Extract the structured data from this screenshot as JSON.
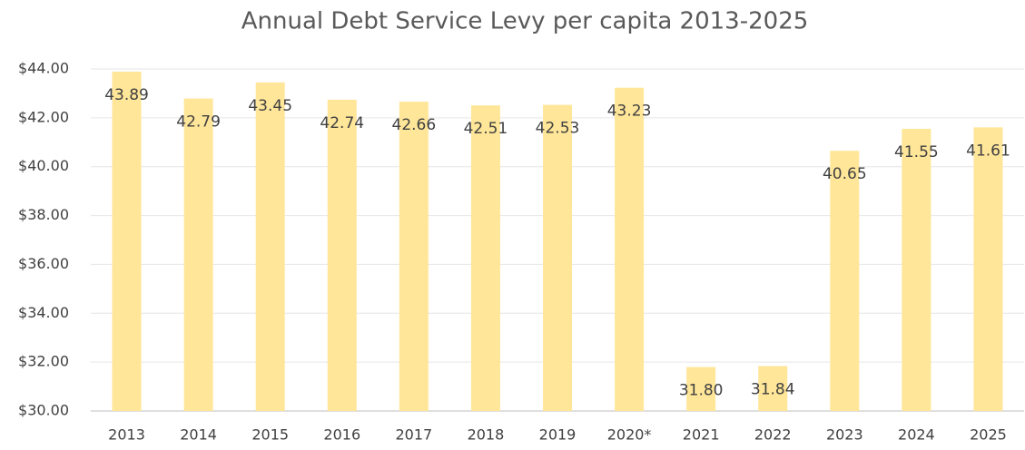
{
  "chart_data": {
    "type": "bar",
    "title": "Annual Debt Service Levy per capita 2013-2025",
    "categories": [
      "2013",
      "2014",
      "2015",
      "2016",
      "2017",
      "2018",
      "2019",
      "2020*",
      "2021",
      "2022",
      "2023",
      "2024",
      "2025"
    ],
    "values": [
      43.89,
      42.79,
      43.45,
      42.74,
      42.66,
      42.51,
      42.53,
      43.23,
      31.8,
      31.84,
      40.65,
      41.55,
      41.61
    ],
    "value_labels": [
      "43.89",
      "42.79",
      "43.45",
      "42.74",
      "42.66",
      "42.51",
      "42.53",
      "43.23",
      "31.80",
      "31.84",
      "40.65",
      "41.55",
      "41.61"
    ],
    "color": "#ffe699",
    "ylim": [
      30,
      44
    ],
    "yticks": [
      {
        "value": 30,
        "label": "$30.00"
      },
      {
        "value": 32,
        "label": "$32.00"
      },
      {
        "value": 34,
        "label": "$34.00"
      },
      {
        "value": 36,
        "label": "$36.00"
      },
      {
        "value": 38,
        "label": "$38.00"
      },
      {
        "value": 40,
        "label": "$40.00"
      },
      {
        "value": 42,
        "label": "$42.00"
      },
      {
        "value": 44,
        "label": "$44.00"
      }
    ],
    "grid": true
  }
}
